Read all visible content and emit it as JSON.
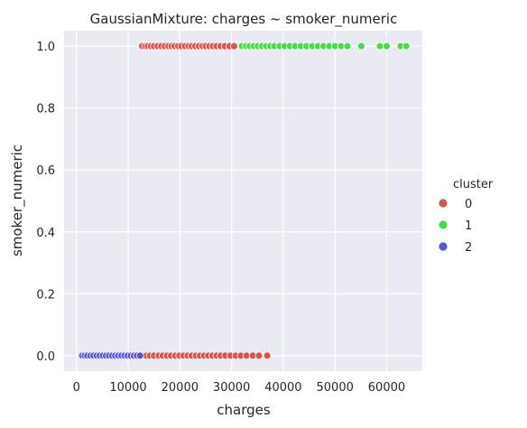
{
  "chart_data": {
    "type": "scatter",
    "title": "GaussianMixture: charges ~ smoker_numeric",
    "xlabel": "charges",
    "ylabel": "smoker_numeric",
    "xlim": [
      -2400,
      66900
    ],
    "ylim": [
      -0.05,
      1.05
    ],
    "xticks": [
      0,
      10000,
      20000,
      30000,
      40000,
      50000,
      60000
    ],
    "xtick_labels": [
      "0",
      "10000",
      "20000",
      "30000",
      "40000",
      "50000",
      "60000"
    ],
    "yticks": [
      0.0,
      0.2,
      0.4,
      0.6,
      0.8,
      1.0
    ],
    "ytick_labels": [
      "0.0",
      "0.2",
      "0.4",
      "0.6",
      "0.8",
      "1.0"
    ],
    "grid": true,
    "legend_placement": "right",
    "legend_title": "cluster",
    "series": [
      {
        "name": "0",
        "color": "#d9534f",
        "points": [
          [
            12700,
            1
          ],
          [
            13300,
            1
          ],
          [
            13800,
            1
          ],
          [
            14400,
            1
          ],
          [
            15000,
            1
          ],
          [
            15700,
            1
          ],
          [
            16400,
            1
          ],
          [
            17100,
            1
          ],
          [
            17800,
            1
          ],
          [
            18400,
            1
          ],
          [
            19000,
            1
          ],
          [
            19700,
            1
          ],
          [
            20300,
            1
          ],
          [
            21000,
            1
          ],
          [
            21700,
            1
          ],
          [
            22300,
            1
          ],
          [
            23000,
            1
          ],
          [
            23700,
            1
          ],
          [
            24400,
            1
          ],
          [
            25000,
            1
          ],
          [
            25700,
            1
          ],
          [
            26400,
            1
          ],
          [
            27100,
            1
          ],
          [
            27900,
            1
          ],
          [
            28700,
            1
          ],
          [
            29600,
            1
          ],
          [
            30500,
            1
          ],
          [
            12700,
            0
          ],
          [
            13500,
            0
          ],
          [
            14200,
            0
          ],
          [
            15000,
            0
          ],
          [
            15900,
            0
          ],
          [
            16700,
            0
          ],
          [
            17500,
            0
          ],
          [
            18300,
            0
          ],
          [
            19100,
            0
          ],
          [
            19900,
            0
          ],
          [
            20700,
            0
          ],
          [
            21500,
            0
          ],
          [
            22300,
            0
          ],
          [
            23100,
            0
          ],
          [
            23900,
            0
          ],
          [
            24700,
            0
          ],
          [
            25500,
            0
          ],
          [
            26300,
            0
          ],
          [
            27100,
            0
          ],
          [
            27900,
            0
          ],
          [
            28800,
            0
          ],
          [
            29800,
            0
          ],
          [
            30800,
            0
          ],
          [
            31800,
            0
          ],
          [
            32900,
            0
          ],
          [
            34100,
            0
          ],
          [
            35300,
            0
          ],
          [
            36900,
            0
          ]
        ]
      },
      {
        "name": "1",
        "color": "#4cd94c",
        "points": [
          [
            32000,
            1
          ],
          [
            32800,
            1
          ],
          [
            33500,
            1
          ],
          [
            34300,
            1
          ],
          [
            35100,
            1
          ],
          [
            35900,
            1
          ],
          [
            36700,
            1
          ],
          [
            37500,
            1
          ],
          [
            38300,
            1
          ],
          [
            39300,
            1
          ],
          [
            40300,
            1
          ],
          [
            41300,
            1
          ],
          [
            42300,
            1
          ],
          [
            43400,
            1
          ],
          [
            44500,
            1
          ],
          [
            45600,
            1
          ],
          [
            46700,
            1
          ],
          [
            47800,
            1
          ],
          [
            48900,
            1
          ],
          [
            50000,
            1
          ],
          [
            51200,
            1
          ],
          [
            52400,
            1
          ],
          [
            55100,
            1
          ],
          [
            58700,
            1
          ],
          [
            60000,
            1
          ],
          [
            62700,
            1
          ],
          [
            63800,
            1
          ]
        ]
      },
      {
        "name": "2",
        "color": "#5b55d6",
        "points": [
          [
            1100,
            0
          ],
          [
            1600,
            0
          ],
          [
            2100,
            0
          ],
          [
            2700,
            0
          ],
          [
            3300,
            0
          ],
          [
            3900,
            0
          ],
          [
            4500,
            0
          ],
          [
            5100,
            0
          ],
          [
            5700,
            0
          ],
          [
            6300,
            0
          ],
          [
            6900,
            0
          ],
          [
            7500,
            0
          ],
          [
            8100,
            0
          ],
          [
            8700,
            0
          ],
          [
            9300,
            0
          ],
          [
            9900,
            0
          ],
          [
            10500,
            0
          ],
          [
            11100,
            0
          ],
          [
            11700,
            0
          ],
          [
            12300,
            0
          ]
        ]
      }
    ]
  }
}
